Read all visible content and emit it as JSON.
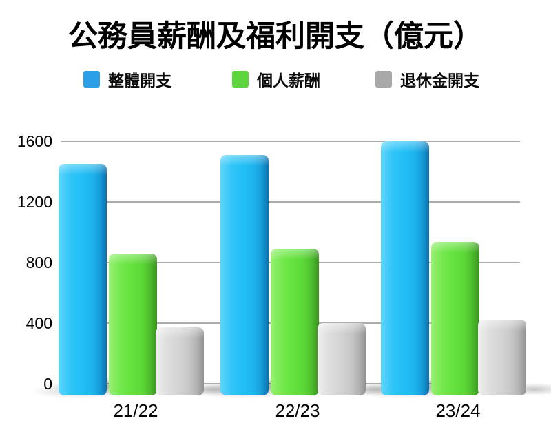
{
  "title": "公務員薪酬及福利開支（億元）",
  "legend": {
    "items": [
      {
        "label": "整體開支",
        "color": "#2B9FE8"
      },
      {
        "label": "個人薪酬",
        "color": "#5CD63C"
      },
      {
        "label": "退休金開支",
        "color": "#A8A8A8"
      }
    ]
  },
  "chart_data": {
    "type": "bar",
    "title": "公務員薪酬及福利開支（億元）",
    "categories": [
      "21/22",
      "22/23",
      "23/24"
    ],
    "series": [
      {
        "id": "overall-expenditure",
        "name": "整體開支",
        "color": "#23BDF5",
        "values": [
          1450,
          1510,
          1600
        ]
      },
      {
        "id": "personal-salary",
        "name": "個人薪酬",
        "color": "#63E03C",
        "values": [
          860,
          890,
          935
        ]
      },
      {
        "id": "pension-expenditure",
        "name": "退休金開支",
        "color": "#C9C9C9",
        "values": [
          375,
          400,
          425
        ]
      }
    ],
    "xlabel": "",
    "ylabel": "",
    "ylim": [
      0,
      1600
    ],
    "yticks": [
      0,
      400,
      800,
      1200,
      1600
    ],
    "grid": true,
    "legend_position": "top",
    "style": "3d-rounded-bars"
  }
}
